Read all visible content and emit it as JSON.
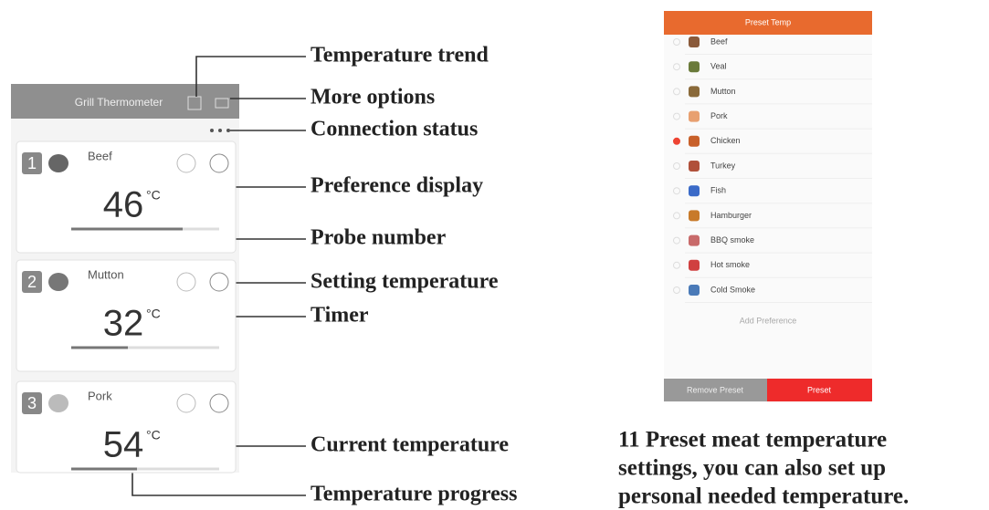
{
  "callouts": [
    "Temperature trend",
    "More options",
    "Connection status",
    "Preference display",
    "Probe number",
    "Setting temperature",
    "Timer",
    "Current temperature",
    "Temperature progress"
  ],
  "left_screen": {
    "title": "Grill Thermometer",
    "unit": "°C",
    "probes": [
      {
        "number": "1",
        "name": "Beef",
        "temperature": "46"
      },
      {
        "number": "2",
        "name": "Mutton",
        "temperature": "32"
      },
      {
        "number": "3",
        "name": "Pork",
        "temperature": "54"
      }
    ]
  },
  "right_screen": {
    "header": "Preset Temp",
    "items": [
      "Beef",
      "Veal",
      "Mutton",
      "Pork",
      "Chicken",
      "Turkey",
      "Fish",
      "Hamburger",
      "BBQ smoke",
      "Hot smoke",
      "Cold Smoke"
    ],
    "add": "Add Preference",
    "buttons": [
      "Remove Preset",
      "Preset"
    ]
  },
  "caption": [
    "11 Preset meat temperature",
    "settings, you can also set up",
    "personal needed temperature."
  ]
}
